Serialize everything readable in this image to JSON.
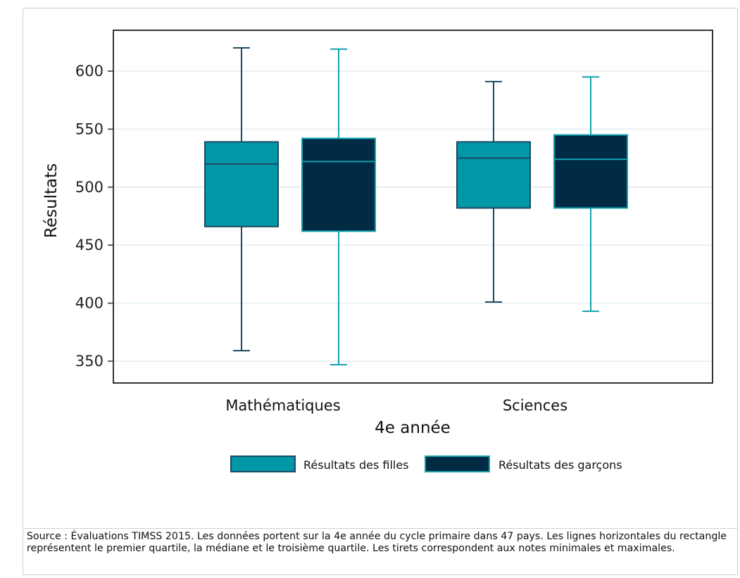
{
  "colors": {
    "filles_fill": "#0098A6",
    "filles_stroke": "#1A4A63",
    "garcons_fill": "#012A45",
    "garcons_stroke": "#13A3AE",
    "grid": "#e8f1f1",
    "plot_border": "#333333"
  },
  "chart_data": {
    "type": "boxplot",
    "title": "",
    "xlabel": "4e année",
    "ylabel": "Résultats",
    "ylim": [
      330,
      635
    ],
    "yticks": [
      350,
      400,
      450,
      500,
      550,
      600
    ],
    "categories": [
      "Mathématiques",
      "Sciences"
    ],
    "grid": true,
    "legend_position": "bottom",
    "series": [
      {
        "name": "Résultats des filles",
        "boxes": [
          {
            "min": 359,
            "q1": 466,
            "median": 520,
            "q3": 539,
            "max": 620
          },
          {
            "min": 401,
            "q1": 482,
            "median": 525,
            "q3": 539,
            "max": 591
          }
        ]
      },
      {
        "name": "Résultats des garçons",
        "boxes": [
          {
            "min": 347,
            "q1": 462,
            "median": 522,
            "q3": 542,
            "max": 619
          },
          {
            "min": 393,
            "q1": 482,
            "median": 524,
            "q3": 545,
            "max": 595
          }
        ]
      }
    ]
  },
  "source_text": "Source : Évaluations TIMSS 2015. Les données portent sur la 4e année du cycle primaire dans 47 pays. Les lignes horizontales du rectangle représentent le premier quartile, la médiane et le troisième quartile. Les tirets correspondent aux notes minimales et maximales."
}
